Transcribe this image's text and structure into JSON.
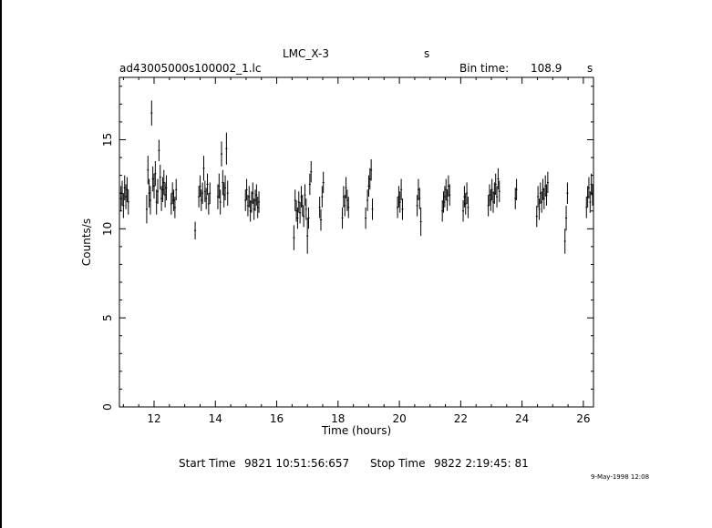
{
  "header": {
    "object": "LMC_X-3",
    "flag": "s",
    "filename": "ad43005000s100002_1.lc",
    "bin_label": "Bin time:",
    "bin_value": "108.9",
    "bin_unit": "s"
  },
  "footer": {
    "start_label": "Start Time",
    "start_value": "9821 10:51:56:657",
    "stop_label": "Stop Time",
    "stop_value": "9822  2:19:45: 81",
    "datestamp": "9-May-1998 12:08"
  },
  "chart_data": {
    "type": "scatter",
    "xlabel": "Time (hours)",
    "ylabel": "Counts/s",
    "xlim": [
      10.87,
      26.33
    ],
    "ylim": [
      0,
      18.5
    ],
    "x_ticks": [
      12,
      14,
      16,
      18,
      20,
      22,
      24,
      26
    ],
    "y_ticks": [
      0,
      5,
      10,
      15
    ],
    "grid": false,
    "legend": "none",
    "series": [
      {
        "error_bars": true,
        "points": [
          [
            10.92,
            11.7,
            0.7
          ],
          [
            10.96,
            12.0,
            0.7
          ],
          [
            11.0,
            11.3,
            0.7
          ],
          [
            11.04,
            12.3,
            0.7
          ],
          [
            11.08,
            11.8,
            0.7
          ],
          [
            11.12,
            12.2,
            0.7
          ],
          [
            11.16,
            11.5,
            0.7
          ],
          [
            11.76,
            11.1,
            0.8
          ],
          [
            11.8,
            13.3,
            0.8
          ],
          [
            11.84,
            12.0,
            0.8
          ],
          [
            11.88,
            11.6,
            0.8
          ],
          [
            11.92,
            16.5,
            0.7
          ],
          [
            11.96,
            12.8,
            0.7
          ],
          [
            12.0,
            12.4,
            0.7
          ],
          [
            12.04,
            13.1,
            0.7
          ],
          [
            12.08,
            11.5,
            0.7
          ],
          [
            12.12,
            12.1,
            0.7
          ],
          [
            12.16,
            14.4,
            0.6
          ],
          [
            12.2,
            12.9,
            0.7
          ],
          [
            12.24,
            11.7,
            0.7
          ],
          [
            12.28,
            12.2,
            0.7
          ],
          [
            12.32,
            12.6,
            0.7
          ],
          [
            12.36,
            11.9,
            0.7
          ],
          [
            12.4,
            12.3,
            0.7
          ],
          [
            12.56,
            11.4,
            0.6
          ],
          [
            12.6,
            12.0,
            0.6
          ],
          [
            12.64,
            11.6,
            0.6
          ],
          [
            12.68,
            11.2,
            0.6
          ],
          [
            12.72,
            12.2,
            0.6
          ],
          [
            13.34,
            9.9,
            0.5
          ],
          [
            13.46,
            11.8,
            0.6
          ],
          [
            13.5,
            12.4,
            0.6
          ],
          [
            13.54,
            11.6,
            0.6
          ],
          [
            13.58,
            12.0,
            0.6
          ],
          [
            13.62,
            13.4,
            0.7
          ],
          [
            13.66,
            12.1,
            0.6
          ],
          [
            13.7,
            11.7,
            0.6
          ],
          [
            13.74,
            12.5,
            0.6
          ],
          [
            13.78,
            11.4,
            0.6
          ],
          [
            13.82,
            12.0,
            0.6
          ],
          [
            14.08,
            11.8,
            0.7
          ],
          [
            14.12,
            12.4,
            0.7
          ],
          [
            14.16,
            11.5,
            0.7
          ],
          [
            14.2,
            14.2,
            0.7
          ],
          [
            14.24,
            12.6,
            0.7
          ],
          [
            14.28,
            11.9,
            0.7
          ],
          [
            14.32,
            12.3,
            0.7
          ],
          [
            14.36,
            14.5,
            0.9
          ],
          [
            14.4,
            12.0,
            0.7
          ],
          [
            14.98,
            11.6,
            0.6
          ],
          [
            15.02,
            12.2,
            0.6
          ],
          [
            15.06,
            11.3,
            0.6
          ],
          [
            15.1,
            11.8,
            0.6
          ],
          [
            15.14,
            11.0,
            0.6
          ],
          [
            15.18,
            11.5,
            0.6
          ],
          [
            15.22,
            12.0,
            0.6
          ],
          [
            15.26,
            11.1,
            0.6
          ],
          [
            15.3,
            11.6,
            0.6
          ],
          [
            15.34,
            11.9,
            0.6
          ],
          [
            15.38,
            11.2,
            0.6
          ],
          [
            15.42,
            11.5,
            0.6
          ],
          [
            16.56,
            9.5,
            0.7
          ],
          [
            16.6,
            11.6,
            0.6
          ],
          [
            16.64,
            11.0,
            0.6
          ],
          [
            16.68,
            10.6,
            0.6
          ],
          [
            16.72,
            11.5,
            0.6
          ],
          [
            16.76,
            10.9,
            0.6
          ],
          [
            16.8,
            11.8,
            0.6
          ],
          [
            16.84,
            11.3,
            0.6
          ],
          [
            16.88,
            10.7,
            0.6
          ],
          [
            16.92,
            11.9,
            0.6
          ],
          [
            16.96,
            11.1,
            0.6
          ],
          [
            17.0,
            9.6,
            1.0
          ],
          [
            17.04,
            10.6,
            0.6
          ],
          [
            17.08,
            12.5,
            0.6
          ],
          [
            17.12,
            13.2,
            0.6
          ],
          [
            17.4,
            11.2,
            0.6
          ],
          [
            17.44,
            10.5,
            0.6
          ],
          [
            17.48,
            11.8,
            0.6
          ],
          [
            17.52,
            12.6,
            0.6
          ],
          [
            18.14,
            10.6,
            0.6
          ],
          [
            18.18,
            11.8,
            0.6
          ],
          [
            18.22,
            11.3,
            0.6
          ],
          [
            18.26,
            12.3,
            0.6
          ],
          [
            18.3,
            11.6,
            0.6
          ],
          [
            18.34,
            11.2,
            0.6
          ],
          [
            18.9,
            10.6,
            0.6
          ],
          [
            18.96,
            11.6,
            0.6
          ],
          [
            19.0,
            12.4,
            0.6
          ],
          [
            19.04,
            12.8,
            0.6
          ],
          [
            19.08,
            13.3,
            0.6
          ],
          [
            19.12,
            11.1,
            0.6
          ],
          [
            19.94,
            11.2,
            0.6
          ],
          [
            19.98,
            11.8,
            0.6
          ],
          [
            20.02,
            11.5,
            0.6
          ],
          [
            20.06,
            12.2,
            0.6
          ],
          [
            20.1,
            11.1,
            0.6
          ],
          [
            20.58,
            11.3,
            0.6
          ],
          [
            20.62,
            12.2,
            0.6
          ],
          [
            20.66,
            11.7,
            0.6
          ],
          [
            20.7,
            10.4,
            0.8
          ],
          [
            21.4,
            11.0,
            0.6
          ],
          [
            21.44,
            11.5,
            0.6
          ],
          [
            21.48,
            11.8,
            0.6
          ],
          [
            21.52,
            12.2,
            0.6
          ],
          [
            21.56,
            11.6,
            0.6
          ],
          [
            21.6,
            12.4,
            0.6
          ],
          [
            21.64,
            11.9,
            0.6
          ],
          [
            22.08,
            11.0,
            0.6
          ],
          [
            22.12,
            11.8,
            0.6
          ],
          [
            22.16,
            11.4,
            0.6
          ],
          [
            22.2,
            12.0,
            0.6
          ],
          [
            22.24,
            11.2,
            0.6
          ],
          [
            22.9,
            11.3,
            0.6
          ],
          [
            22.94,
            11.9,
            0.6
          ],
          [
            22.98,
            11.6,
            0.6
          ],
          [
            23.02,
            12.2,
            0.6
          ],
          [
            23.06,
            11.5,
            0.6
          ],
          [
            23.1,
            12.0,
            0.6
          ],
          [
            23.14,
            12.5,
            0.6
          ],
          [
            23.18,
            11.8,
            0.6
          ],
          [
            23.22,
            12.8,
            0.6
          ],
          [
            23.26,
            12.1,
            0.6
          ],
          [
            23.78,
            11.7,
            0.6
          ],
          [
            23.82,
            12.2,
            0.6
          ],
          [
            24.48,
            10.7,
            0.6
          ],
          [
            24.52,
            11.8,
            0.6
          ],
          [
            24.56,
            11.1,
            0.6
          ],
          [
            24.6,
            12.0,
            0.6
          ],
          [
            24.64,
            11.5,
            0.6
          ],
          [
            24.68,
            12.2,
            0.6
          ],
          [
            24.72,
            11.7,
            0.6
          ],
          [
            24.76,
            12.4,
            0.6
          ],
          [
            24.8,
            11.9,
            0.6
          ],
          [
            24.84,
            12.6,
            0.6
          ],
          [
            25.4,
            9.3,
            0.7
          ],
          [
            25.44,
            10.6,
            0.7
          ],
          [
            25.48,
            12.0,
            0.6
          ],
          [
            26.1,
            11.2,
            0.6
          ],
          [
            26.14,
            11.8,
            0.6
          ],
          [
            26.18,
            12.3,
            0.6
          ],
          [
            26.22,
            11.5,
            0.6
          ],
          [
            26.26,
            12.5,
            0.6
          ],
          [
            26.3,
            11.9,
            0.6
          ]
        ]
      }
    ]
  }
}
